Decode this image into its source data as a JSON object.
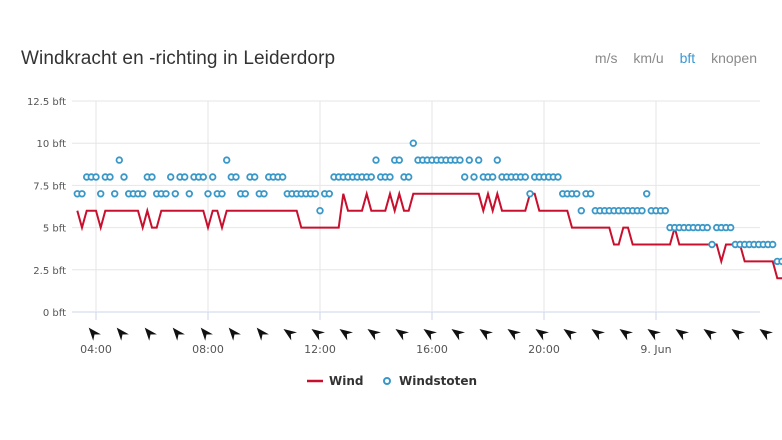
{
  "header": {
    "title": "Windkracht en -richting in Leiderdorp",
    "units": [
      {
        "label": "m/s",
        "active": false
      },
      {
        "label": "km/u",
        "active": false
      },
      {
        "label": "bft",
        "active": true
      },
      {
        "label": "knopen",
        "active": false
      }
    ]
  },
  "colors": {
    "wind": "#c8102e",
    "gusts": "#3a98c8",
    "grid": "#e6e6e6",
    "active_unit": "#3a98d6"
  },
  "chart_data": {
    "type": "line",
    "title": "Windkracht en -richting in Leiderdorp",
    "xlabel": "",
    "ylabel": "",
    "ylim": [
      0,
      12.5
    ],
    "yticks": [
      {
        "value": 0,
        "label": "0 bft"
      },
      {
        "value": 2.5,
        "label": "2.5 bft"
      },
      {
        "value": 5,
        "label": "5 bft"
      },
      {
        "value": 7.5,
        "label": "7.5 bft"
      },
      {
        "value": 10,
        "label": "10 bft"
      },
      {
        "value": 12.5,
        "label": "12.5 bft"
      }
    ],
    "x_unit": "hours since 00:00 on 8 Jun",
    "xlim": [
      3.0,
      27.6
    ],
    "xticks": [
      {
        "value": 4,
        "label": "04:00"
      },
      {
        "value": 8,
        "label": "08:00"
      },
      {
        "value": 12,
        "label": "12:00"
      },
      {
        "value": 16,
        "label": "16:00"
      },
      {
        "value": 20,
        "label": "20:00"
      },
      {
        "value": 24,
        "label": "9. Jun"
      }
    ],
    "grid": true,
    "legend_position": "bottom-center",
    "start_hour": 3.3333,
    "step_minutes": 10,
    "series": [
      {
        "name": "Wind",
        "type": "line",
        "values": [
          6,
          5,
          6,
          6,
          6,
          5,
          6,
          6,
          6,
          6,
          6,
          6,
          6,
          6,
          5,
          6,
          5,
          5,
          6,
          6,
          6,
          6,
          6,
          6,
          6,
          6,
          6,
          6,
          5,
          6,
          6,
          5,
          6,
          6,
          6,
          6,
          6,
          6,
          6,
          6,
          6,
          6,
          6,
          6,
          6,
          6,
          6,
          6,
          5,
          5,
          5,
          5,
          5,
          5,
          5,
          5,
          5,
          7,
          6,
          6,
          6,
          6,
          7,
          6,
          6,
          6,
          6,
          7,
          6,
          7,
          6,
          6,
          7,
          7,
          7,
          7,
          7,
          7,
          7,
          7,
          7,
          7,
          7,
          7,
          7,
          7,
          7,
          6,
          7,
          6,
          7,
          6,
          6,
          6,
          6,
          6,
          6,
          7,
          7,
          6,
          6,
          6,
          6,
          6,
          6,
          6,
          5,
          5,
          5,
          5,
          5,
          5,
          5,
          5,
          5,
          4,
          4,
          5,
          5,
          4,
          4,
          4,
          4,
          4,
          4,
          4,
          4,
          4,
          5,
          4,
          4,
          4,
          4,
          4,
          4,
          4,
          4,
          4,
          3,
          4,
          4,
          4,
          4,
          3,
          3,
          3,
          3,
          3,
          3,
          3,
          2,
          2,
          2,
          2,
          2,
          2,
          2
        ]
      },
      {
        "name": "Windstoten",
        "type": "scatter",
        "values": [
          7,
          7,
          8,
          8,
          8,
          7,
          8,
          8,
          7,
          9,
          8,
          7,
          7,
          7,
          7,
          8,
          8,
          7,
          7,
          7,
          8,
          7,
          8,
          8,
          7,
          8,
          8,
          8,
          7,
          8,
          7,
          7,
          9,
          8,
          8,
          7,
          7,
          8,
          8,
          7,
          7,
          8,
          8,
          8,
          8,
          7,
          7,
          7,
          7,
          7,
          7,
          7,
          6,
          7,
          7,
          8,
          8,
          8,
          8,
          8,
          8,
          8,
          8,
          8,
          9,
          8,
          8,
          8,
          9,
          9,
          8,
          8,
          10,
          9,
          9,
          9,
          9,
          9,
          9,
          9,
          9,
          9,
          9,
          8,
          9,
          8,
          9,
          8,
          8,
          8,
          9,
          8,
          8,
          8,
          8,
          8,
          8,
          7,
          8,
          8,
          8,
          8,
          8,
          8,
          7,
          7,
          7,
          7,
          6,
          7,
          7,
          6,
          6,
          6,
          6,
          6,
          6,
          6,
          6,
          6,
          6,
          6,
          7,
          6,
          6,
          6,
          6,
          5,
          5,
          5,
          5,
          5,
          5,
          5,
          5,
          5,
          4,
          5,
          5,
          5,
          5,
          4,
          4,
          4,
          4,
          4,
          4,
          4,
          4,
          4,
          3,
          3,
          3,
          3,
          3,
          3,
          3
        ]
      }
    ],
    "direction_arrows": {
      "interval_hours": 1,
      "start_hour": 3.9,
      "bearings_deg": [
        40,
        40,
        40,
        40,
        40,
        40,
        40,
        55,
        55,
        55,
        55,
        55,
        55,
        55,
        55,
        55,
        55,
        55,
        55,
        55,
        55,
        55,
        55,
        55,
        55
      ]
    }
  },
  "legend": {
    "wind_label": "Wind",
    "gusts_label": "Windstoten"
  }
}
